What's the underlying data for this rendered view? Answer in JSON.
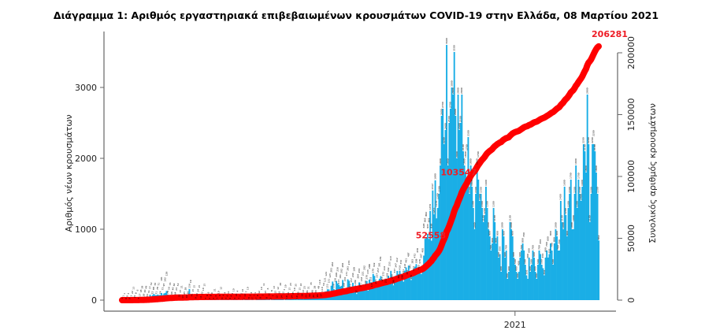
{
  "chart_data": {
    "type": "bar+line",
    "title": "Διάγραμμα 1: Αριθμός εργαστηριακά επιβεβαιωμένων κρουσμάτων COVID-19 στην Ελλάδα, 08 Μαρτίου 2021",
    "ylabel": "Αριθμός νέων κρουσμάτων",
    "y2label": "Συνολικός αριθμός κρουσμάτων",
    "xlim": [
      "2020-02-26",
      "2021-03-08"
    ],
    "x_ticks": [
      {
        "date": "2021-01-01",
        "label": "2021"
      }
    ],
    "y_ticks": [
      "0",
      "1000",
      "2000",
      "3000"
    ],
    "y_tick_values": [
      0,
      1000,
      2000,
      3000
    ],
    "y2_ticks": [
      "0",
      "50000",
      "100000",
      "150000",
      "200000"
    ],
    "y2_tick_values": [
      0,
      50000,
      100000,
      150000,
      200000
    ],
    "grid": false,
    "bar_color": "#1aaee6",
    "line_color": "#ff0000",
    "annotation_color": "#ee1c25",
    "bar_series": {
      "values": [
        1,
        1,
        1,
        0,
        0,
        3,
        0,
        3,
        22,
        13,
        21,
        8,
        6,
        5,
        17,
        18,
        39,
        38,
        40,
        49,
        34,
        31,
        77,
        52,
        72,
        88,
        70,
        71,
        78,
        71,
        74,
        101,
        73,
        95,
        102,
        129,
        78,
        56,
        74,
        66,
        40,
        62,
        64,
        24,
        52,
        31,
        37,
        21,
        13,
        25,
        28,
        16,
        26,
        156,
        19,
        41,
        15,
        15,
        9,
        10,
        24,
        15,
        11,
        22,
        10,
        15,
        3,
        9,
        6,
        2,
        8,
        9,
        2,
        21,
        4,
        5,
        10,
        0,
        12,
        6,
        4,
        4,
        5,
        6,
        11,
        0,
        4,
        3,
        10,
        4,
        21,
        4,
        1,
        3,
        2,
        14,
        1,
        14,
        7,
        10,
        8,
        2,
        4,
        7,
        1,
        1,
        7,
        9,
        12,
        8,
        10,
        5,
        11,
        15,
        8,
        6,
        12,
        2,
        8,
        7,
        13,
        15,
        12,
        12,
        16,
        26,
        14,
        12,
        3,
        19,
        10,
        11,
        15,
        23,
        14,
        35,
        10,
        35,
        10,
        19,
        15,
        16,
        38,
        13,
        23,
        23,
        29,
        31,
        32,
        35,
        46,
        25,
        28,
        33,
        29,
        48,
        110,
        37,
        110,
        56,
        121,
        124,
        153,
        151,
        125,
        203,
        262,
        156,
        126,
        269,
        236,
        217,
        191,
        202,
        284,
        168,
        150,
        171,
        293,
        274,
        153,
        157,
        244,
        169,
        209,
        87,
        204,
        250,
        171,
        163,
        221,
        202,
        199,
        270,
        133,
        288,
        252,
        177,
        370,
        342,
        221,
        227,
        257,
        301,
        339,
        253,
        272,
        216,
        232,
        228,
        342,
        235,
        413,
        290,
        209,
        337,
        347,
        412,
        294,
        416,
        372,
        286,
        261,
        416,
        461,
        350,
        487,
        341,
        283,
        383,
        403,
        472,
        508,
        458,
        420,
        378,
        367,
        495,
        628,
        865,
        882,
        935,
        863,
        1259,
        838,
        1547,
        1211,
        1690,
        1153,
        1300,
        1500,
        1900,
        2600,
        2700,
        2200,
        2400,
        3600,
        1900,
        2500,
        2700,
        3000,
        2900,
        3500,
        2600,
        2000,
        2900,
        2400,
        2500,
        2900,
        2100,
        1900,
        1800,
        1700,
        2300,
        1500,
        1900,
        1600,
        1300,
        1000,
        1500,
        1900,
        1700,
        1400,
        1500,
        1300,
        1100,
        1200,
        1600,
        1300,
        1000,
        900,
        700,
        800,
        1300,
        1100,
        800,
        900,
        600,
        650,
        400,
        1000,
        900,
        600,
        700,
        300,
        400,
        1100,
        1000,
        900,
        600,
        500,
        400,
        300,
        400,
        600,
        700,
        800,
        700,
        500,
        350,
        300,
        600,
        400,
        500,
        700,
        600,
        400,
        300,
        500,
        700,
        650,
        500,
        450,
        350,
        600,
        700,
        600,
        650,
        800,
        700,
        500,
        800,
        1000,
        900,
        700,
        700,
        1400,
        1100,
        1000,
        1600,
        1200,
        900,
        1300,
        1500,
        1700,
        1000,
        1000,
        1500,
        1900,
        1300,
        1700,
        1500,
        1400,
        1600,
        2200,
        2100,
        1800,
        2900,
        2200,
        1100,
        1500,
        2200,
        2200,
        2100,
        1800,
        1500,
        842
      ]
    },
    "cumulative_annotations": [
      "52558",
      "103547",
      "206281"
    ],
    "cumulative_annotation_values": [
      52558,
      103547,
      206281
    ]
  }
}
